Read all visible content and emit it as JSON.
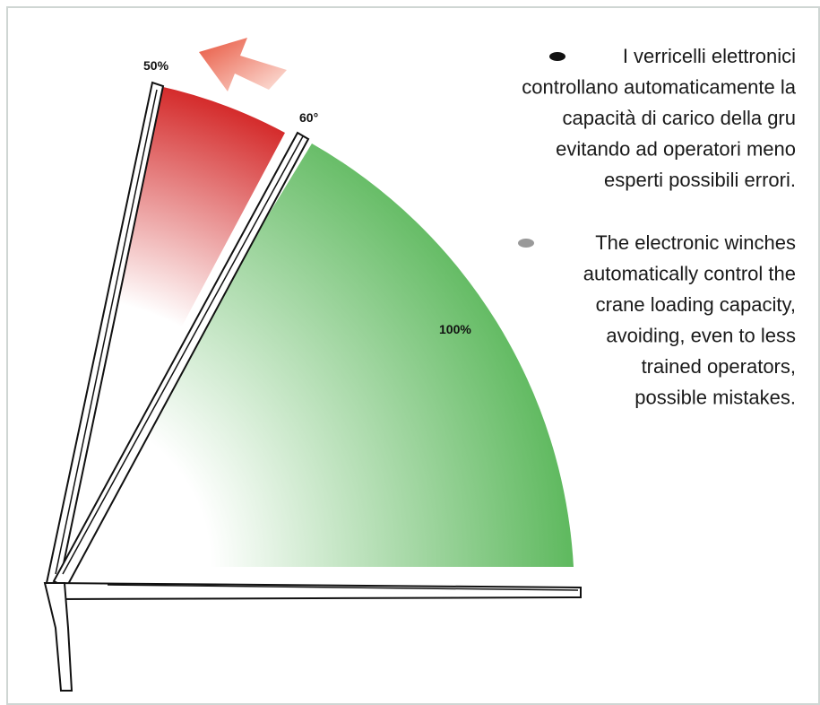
{
  "labels": {
    "boom_high": "50%",
    "boom_angle": "60°",
    "sector": "100%"
  },
  "italian": {
    "lines": [
      "I verricelli elettronici",
      "controllano automaticamente la",
      "capacità di carico della gru",
      "evitando ad operatori meno",
      "esperti possibili errori."
    ]
  },
  "english": {
    "lines": [
      "The electronic winches",
      "automatically control the",
      "crane loading capacity,",
      "avoiding, even to less",
      "trained operators,",
      "possible mistakes."
    ]
  }
}
